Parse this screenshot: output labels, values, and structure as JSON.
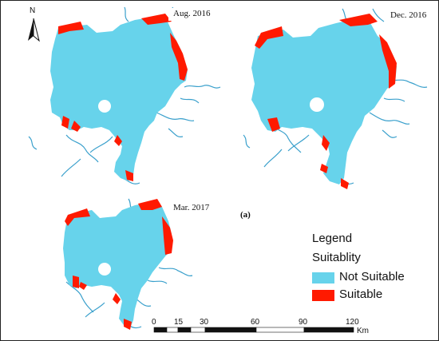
{
  "figure": {
    "panel_label": "(a)",
    "north_letter": "N"
  },
  "maps": [
    {
      "date": "Aug. 2016"
    },
    {
      "date": "Dec. 2016"
    },
    {
      "date": "Mar. 2017"
    }
  ],
  "legend": {
    "title": "Legend",
    "subtitle": "Suitablity",
    "items": [
      {
        "label": "Not Suitable",
        "color": "#67d3eb"
      },
      {
        "label": "Suitable",
        "color": "#ff1a00"
      }
    ]
  },
  "scale_bar": {
    "ticks": [
      "0",
      "15",
      "30",
      "60",
      "90",
      "120"
    ],
    "unit": "Km"
  },
  "colors": {
    "water": "#67d3eb",
    "suitable": "#ff1a00",
    "river": "#3aa0cc"
  }
}
